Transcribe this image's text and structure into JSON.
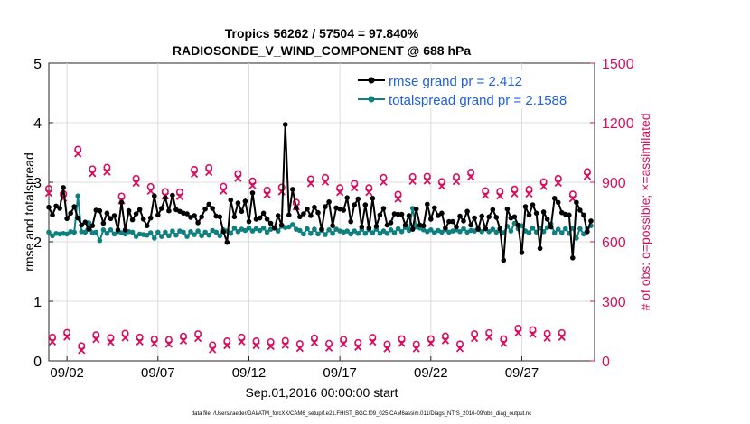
{
  "chart_data": {
    "type": "line",
    "title_line1": "Tropics 56262 / 57504 = 97.840%",
    "title_line2": "RADIOSONDE_V_WIND_COMPONENT @ 688 hPa",
    "xlabel": "Sep.01,2016 00:00:00 start",
    "ylabel_left": "rmse and totalspread",
    "ylabel_right": "# of obs: o=possible; ×=assimilated",
    "footer": "data file: /Users/raeder/DAI/ATM_forcXX/CAM6_setup/f.e21.FHIST_BGC.f09_025.CAM6assim.011/Diags_NTrS_2016-09/obs_diag_output.nc",
    "xlim": [
      1,
      31
    ],
    "ylim_left": [
      0,
      5
    ],
    "ylim_right": [
      0,
      1500
    ],
    "x_ticks": [
      {
        "x": 2,
        "label": "09/02"
      },
      {
        "x": 7,
        "label": "09/07"
      },
      {
        "x": 12,
        "label": "09/12"
      },
      {
        "x": 17,
        "label": "09/17"
      },
      {
        "x": 22,
        "label": "09/22"
      },
      {
        "x": 27,
        "label": "09/27"
      }
    ],
    "y_ticks_left": [
      "0",
      "1",
      "2",
      "3",
      "4",
      "5"
    ],
    "y_ticks_right": [
      "0",
      "300",
      "600",
      "900",
      "1200",
      "1500"
    ],
    "colors": {
      "rmse": "#000000",
      "spread": "#0f8080",
      "obs": "#d6105e",
      "legend_text": "#1f5fe0"
    },
    "legend": [
      {
        "label": "rmse grand pr = 2.412",
        "color_key": "rmse"
      },
      {
        "label": "totalspread grand pr = 2.1588",
        "color_key": "spread"
      }
    ],
    "series": [
      {
        "name": "rmse",
        "axis": "left",
        "values": [
          2.58,
          2.45,
          2.6,
          2.56,
          2.91,
          2.39,
          2.48,
          2.59,
          2.4,
          2.28,
          2.33,
          2.21,
          2.27,
          2.53,
          2.52,
          2.31,
          2.48,
          2.39,
          2.44,
          2.2,
          2.66,
          2.2,
          2.52,
          2.37,
          2.47,
          2.54,
          2.38,
          2.27,
          2.4,
          2.77,
          2.45,
          2.56,
          2.74,
          2.52,
          2.78,
          2.54,
          2.51,
          2.48,
          2.47,
          2.41,
          2.44,
          2.32,
          2.42,
          2.55,
          2.63,
          2.56,
          2.43,
          2.42,
          2.17,
          1.99,
          2.7,
          2.42,
          2.65,
          2.51,
          2.68,
          2.34,
          2.82,
          2.38,
          2.4,
          2.48,
          2.38,
          2.31,
          2.23,
          2.44,
          2.28,
          3.97,
          2.45,
          2.88,
          2.57,
          2.42,
          2.47,
          2.55,
          2.44,
          2.58,
          2.49,
          2.21,
          2.59,
          2.67,
          2.27,
          2.57,
          2.55,
          2.53,
          2.74,
          2.34,
          2.62,
          2.72,
          2.25,
          2.62,
          2.23,
          2.73,
          2.26,
          2.45,
          2.56,
          2.28,
          2.32,
          2.47,
          2.46,
          2.46,
          2.28,
          2.44,
          2.21,
          2.55,
          2.28,
          2.27,
          2.63,
          2.38,
          2.57,
          2.44,
          2.48,
          2.23,
          2.34,
          2.34,
          2.25,
          2.43,
          2.35,
          2.51,
          2.28,
          2.4,
          2.21,
          2.43,
          2.22,
          2.42,
          2.54,
          2.41,
          2.22,
          1.69,
          2.55,
          2.4,
          2.42,
          2.28,
          1.82,
          2.59,
          2.45,
          2.62,
          2.48,
          1.89,
          2.5,
          2.38,
          2.25,
          2.73,
          2.66,
          2.49,
          2.46,
          2.45,
          1.73,
          2.66,
          2.53,
          2.45,
          2.17,
          2.35
        ]
      },
      {
        "name": "totalspread",
        "axis": "left",
        "values": [
          2.16,
          2.1,
          2.14,
          2.13,
          2.14,
          2.13,
          2.17,
          2.16,
          2.77,
          2.17,
          2.16,
          2.32,
          2.15,
          2.16,
          2.02,
          2.2,
          2.14,
          2.2,
          2.13,
          2.17,
          2.15,
          2.13,
          2.17,
          2.16,
          2.09,
          2.13,
          2.12,
          2.11,
          2.15,
          2.06,
          2.16,
          2.09,
          2.16,
          2.1,
          2.18,
          2.11,
          2.18,
          2.16,
          2.09,
          2.17,
          2.12,
          2.18,
          2.1,
          2.16,
          2.11,
          2.19,
          2.16,
          2.1,
          2.2,
          2.18,
          2.14,
          2.23,
          2.17,
          2.21,
          2.19,
          2.23,
          2.18,
          2.22,
          2.19,
          2.23,
          2.16,
          2.21,
          2.23,
          2.18,
          2.26,
          2.24,
          2.25,
          2.29,
          2.21,
          2.19,
          2.13,
          2.22,
          2.14,
          2.21,
          2.13,
          2.19,
          2.12,
          2.2,
          2.14,
          2.21,
          2.18,
          2.16,
          2.18,
          2.13,
          2.18,
          2.14,
          2.21,
          2.14,
          2.2,
          2.15,
          2.21,
          2.14,
          2.18,
          2.14,
          2.2,
          2.15,
          2.22,
          2.17,
          2.24,
          2.19,
          2.56,
          2.25,
          2.23,
          2.2,
          2.17,
          2.2,
          2.15,
          2.19,
          2.16,
          2.2,
          2.16,
          2.18,
          2.2,
          2.17,
          2.22,
          2.16,
          2.19,
          2.18,
          2.23,
          2.17,
          2.22,
          2.17,
          2.21,
          2.16,
          2.19,
          2.15,
          2.26,
          2.18,
          2.31,
          2.22,
          2.27,
          2.18,
          2.15,
          2.23,
          2.16,
          2.23,
          2.17,
          2.24,
          2.3,
          2.15,
          2.21,
          2.15,
          2.22,
          2.14,
          2.23,
          2.06,
          2.22,
          2.13,
          2.23,
          2.27
        ]
      },
      {
        "name": "obs_possible_synoptic",
        "axis": "right",
        "values": [
          845,
          819,
          1043,
          944,
          952,
          807,
          896,
          855,
          830,
          828,
          941,
          950,
          856,
          920,
          883,
          837,
          852,
          776,
          893,
          901,
          849,
          871,
          849,
          901,
          816,
          905,
          907,
          880,
          904,
          927,
          834,
          831,
          842,
          841,
          879,
          896,
          817,
          930
        ]
      },
      {
        "name": "obs_possible_asynoptic",
        "axis": "right",
        "values": [
          96,
          120,
          53,
          108,
          94,
          116,
          96,
          87,
          84,
          101,
          113,
          57,
          77,
          96,
          77,
          73,
          79,
          63,
          92,
          65,
          85,
          69,
          95,
          61,
          88,
          61,
          88,
          102,
          62,
          113,
          119,
          88,
          141,
          134,
          115,
          119
        ]
      }
    ],
    "x_positions_note": "rmse/totalspread: 4 per day from day 1.0 to 31.0 (step 0.2); synoptic obs at 00Z/12Z; asynoptic obs at 06Z/18Z"
  }
}
